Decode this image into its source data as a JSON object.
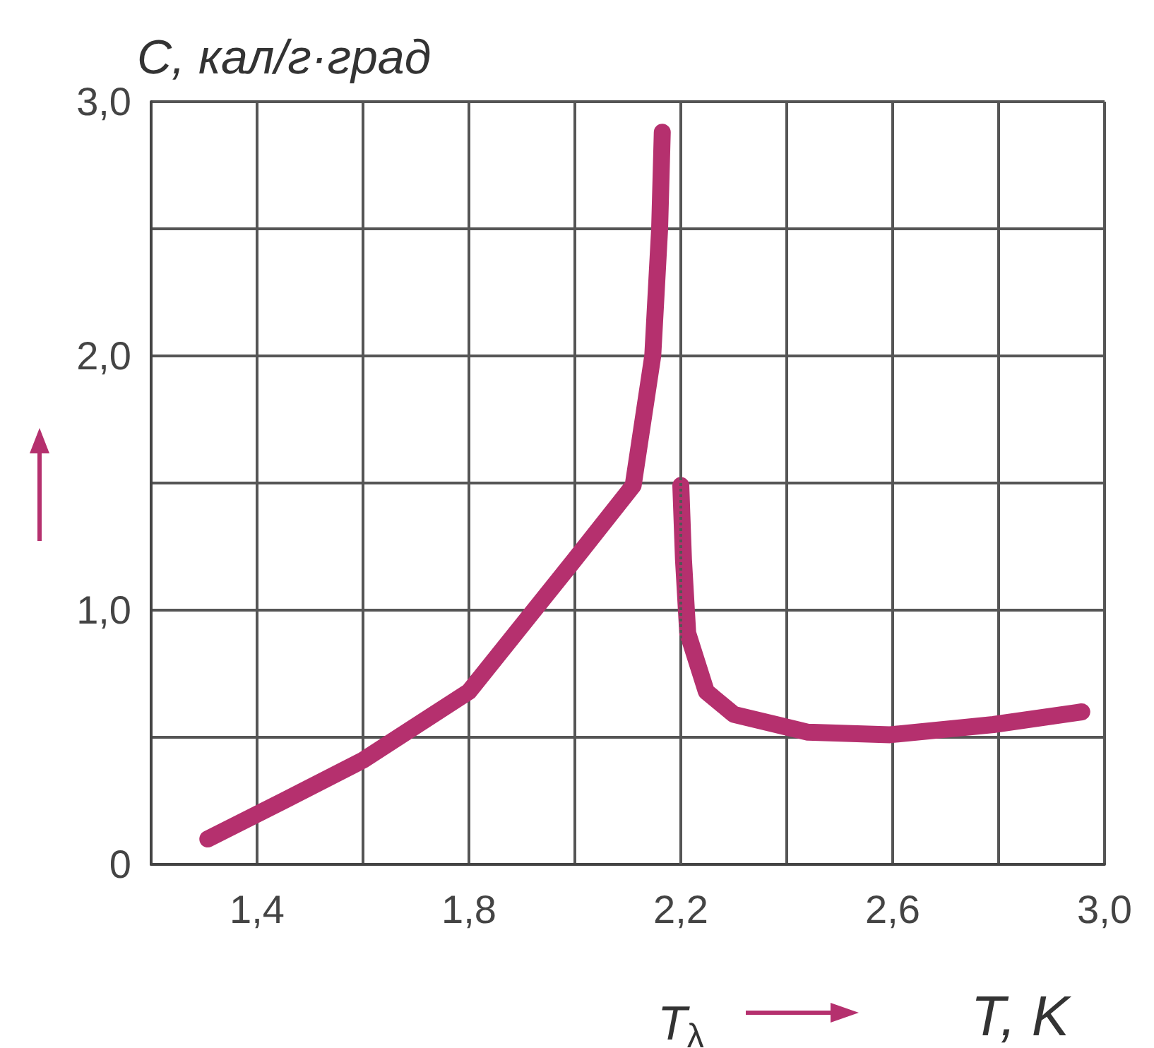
{
  "chart_data": {
    "type": "line",
    "ylabel": "C, кал/г·град",
    "xlabel": "T, K",
    "series": [
      {
        "color": "#b5306e",
        "x": [
          1.307,
          1.45,
          1.6,
          1.8,
          2.0,
          2.11,
          2.147,
          2.16,
          2.165
        ],
        "values": [
          0.1,
          0.25,
          0.41,
          0.68,
          1.2,
          1.49,
          2.0,
          2.5,
          2.88
        ]
      },
      {
        "color": "#b5306e",
        "x": [
          2.2,
          2.205,
          2.213,
          2.248,
          2.3,
          2.44,
          2.595,
          2.79,
          2.957
        ],
        "values": [
          1.49,
          1.2,
          0.91,
          0.68,
          0.59,
          0.52,
          0.51,
          0.55,
          0.6
        ]
      }
    ],
    "xlim": [
      1.2,
      3.0
    ],
    "xticks": [
      {
        "value": 1.2,
        "label": null
      },
      {
        "value": 1.4,
        "label": "1,4"
      },
      {
        "value": 1.6,
        "label": null
      },
      {
        "value": 1.8,
        "label": "1,8"
      },
      {
        "value": 2.0,
        "label": null
      },
      {
        "value": 2.2,
        "label": "2,2"
      },
      {
        "value": 2.4,
        "label": null
      },
      {
        "value": 2.6,
        "label": "2,6"
      },
      {
        "value": 2.8,
        "label": null
      },
      {
        "value": 3.0,
        "label": "3,0"
      }
    ],
    "ylim": [
      0,
      3.0
    ],
    "yticks": [
      0,
      {
        "value": 0.5,
        "label": null
      },
      {
        "value": 1.0,
        "label": "1,0"
      },
      {
        "value": 1.5,
        "label": null
      },
      {
        "value": 2.0,
        "label": "2,0"
      },
      {
        "value": 2.5,
        "label": null
      },
      {
        "value": 3.0,
        "label": "3,0"
      }
    ],
    "ref_lines": [
      {
        "axis": "x",
        "value": 2.2,
        "label": "T$_{λ}$",
        "line_style": "dotted",
        "color": "#555555"
      }
    ],
    "grid": true,
    "line_style": "solid"
  }
}
